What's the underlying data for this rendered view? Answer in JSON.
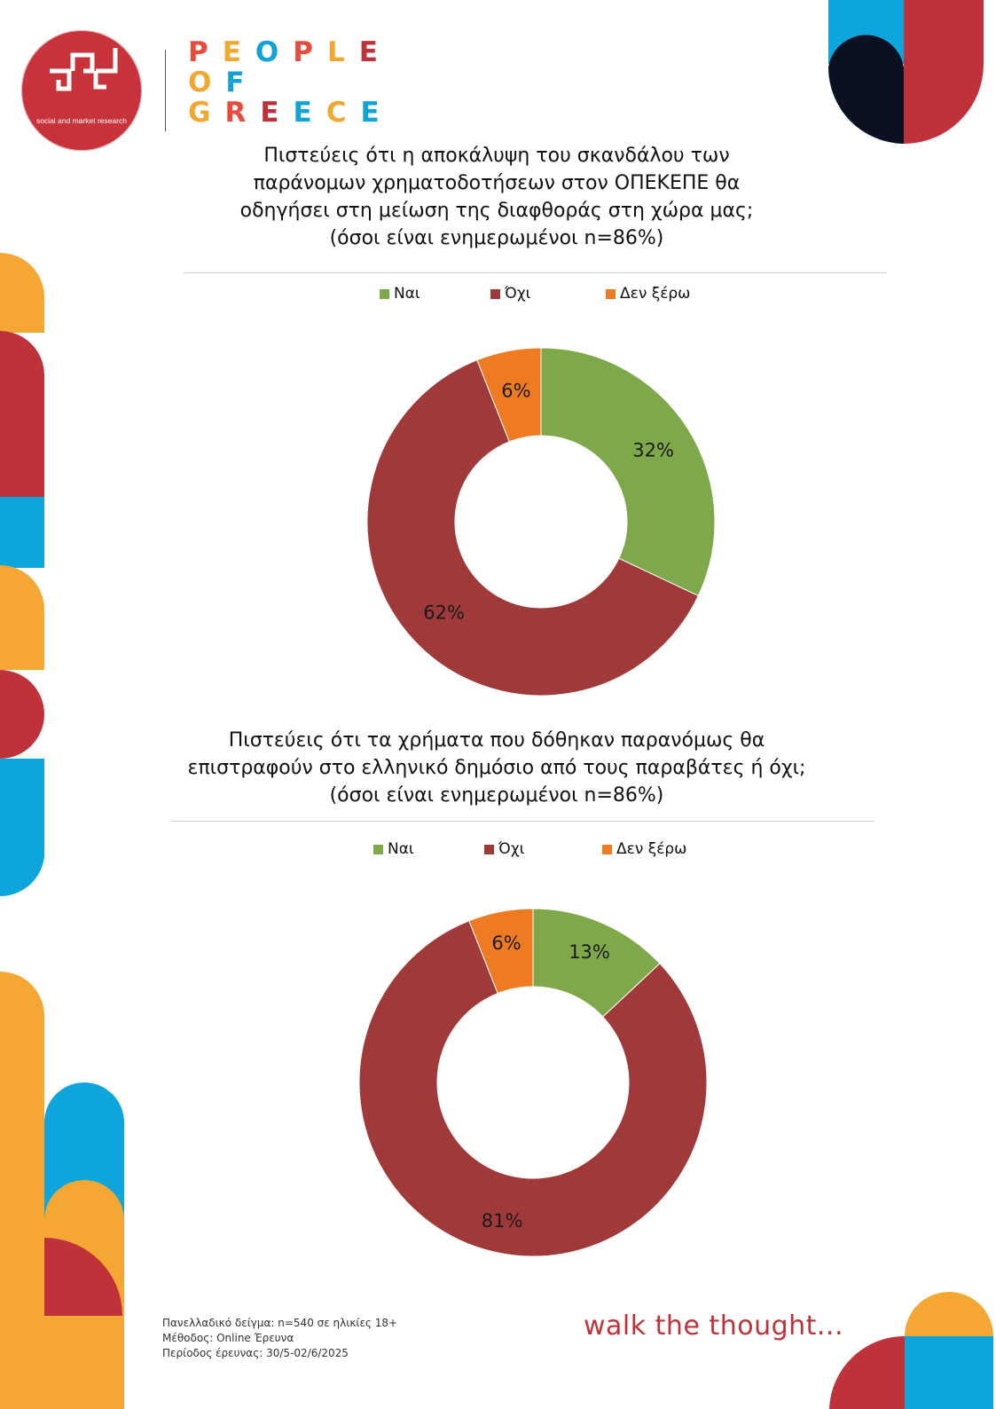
{
  "brand": {
    "logo_subtitle": "social and market research",
    "name_lines": [
      {
        "letters": [
          "P",
          "E",
          "O",
          "P",
          "L",
          "E"
        ],
        "colors": [
          "#e94b3c",
          "#f0a830",
          "#0fa3d9",
          "#e94b3c",
          "#f0a830",
          "#c0323a"
        ]
      },
      {
        "letters": [
          "O",
          "F"
        ],
        "colors": [
          "#f0a830",
          "#0fa3d9"
        ]
      },
      {
        "letters": [
          "G",
          "R",
          "E",
          "E",
          "C",
          "E"
        ],
        "colors": [
          "#f0a830",
          "#e94b3c",
          "#c0323a",
          "#0fa3d9",
          "#f0a830",
          "#0fa3d9"
        ]
      }
    ]
  },
  "colors": {
    "yes": "#7fa84a",
    "no": "#a03a3a",
    "dont_know": "#ee7a22",
    "orange": "#f5a733",
    "red": "#c0323a",
    "blue": "#0ea5dc",
    "navy": "#0a1120"
  },
  "chart_data": [
    {
      "type": "pie",
      "title_lines": [
        "Πιστεύεις ότι η αποκάλυψη του σκανδάλου των",
        "παράνομων χρηματοδοτήσεων στον ΟΠΕΚΕΠΕ θα",
        "οδηγήσει στη μείωση της διαφθοράς στη χώρα μας;",
        "(όσοι είναι ενημερωμένοι n=86%)"
      ],
      "legend": [
        "Ναι",
        "Όχι",
        "Δεν ξέρω"
      ],
      "categories": [
        "Ναι",
        "Όχι",
        "Δεν ξέρω"
      ],
      "values": [
        32,
        62,
        6
      ],
      "labels": [
        "32%",
        "62%",
        "6%"
      ],
      "unit": "%",
      "legend_position": "top"
    },
    {
      "type": "pie",
      "title_lines": [
        "Πιστεύεις ότι τα χρήματα που δόθηκαν παρανόμως θα",
        "επιστραφούν στο ελληνικό δημόσιο από τους παραβάτες ή όχι;",
        "(όσοι είναι ενημερωμένοι n=86%)"
      ],
      "legend": [
        "Ναι",
        "Όχι",
        "Δεν ξέρω"
      ],
      "categories": [
        "Ναι",
        "Όχι",
        "Δεν ξέρω"
      ],
      "values": [
        13,
        81,
        6
      ],
      "labels": [
        "13%",
        "81%",
        "6%"
      ],
      "unit": "%",
      "legend_position": "top"
    }
  ],
  "footer": {
    "sample": "Πανελλαδικό δείγμα: n=540 σε ηλικίες 18+",
    "method": "Μέθοδος: Online Έρευνα",
    "period": "Περίοδος έρευνας: 30/5-02/6/2025",
    "tagline": "walk the thought..."
  }
}
